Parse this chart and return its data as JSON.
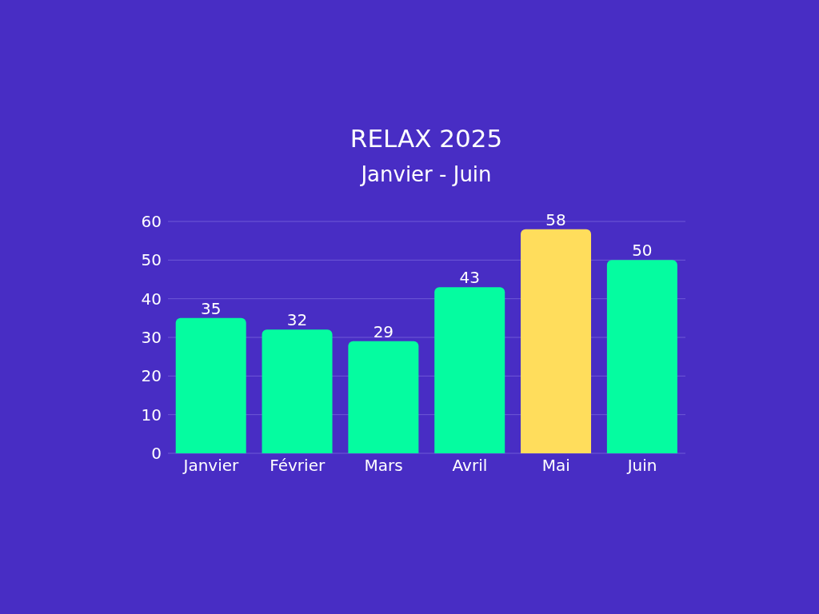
{
  "chart_data": {
    "type": "bar",
    "title": "RELAX 2025",
    "subtitle": "Janvier - Juin",
    "categories": [
      "Janvier",
      "Février",
      "Mars",
      "Avril",
      "Mai",
      "Juin"
    ],
    "values": [
      35,
      32,
      29,
      43,
      58,
      50
    ],
    "colors": [
      "#05fca0",
      "#05fca0",
      "#05fca0",
      "#05fca0",
      "#ffdd5c",
      "#05fca0"
    ],
    "ylim": [
      0,
      60
    ],
    "yticks": [
      0,
      10,
      20,
      30,
      40,
      50,
      60
    ],
    "grid": "y",
    "data_labels": true
  }
}
